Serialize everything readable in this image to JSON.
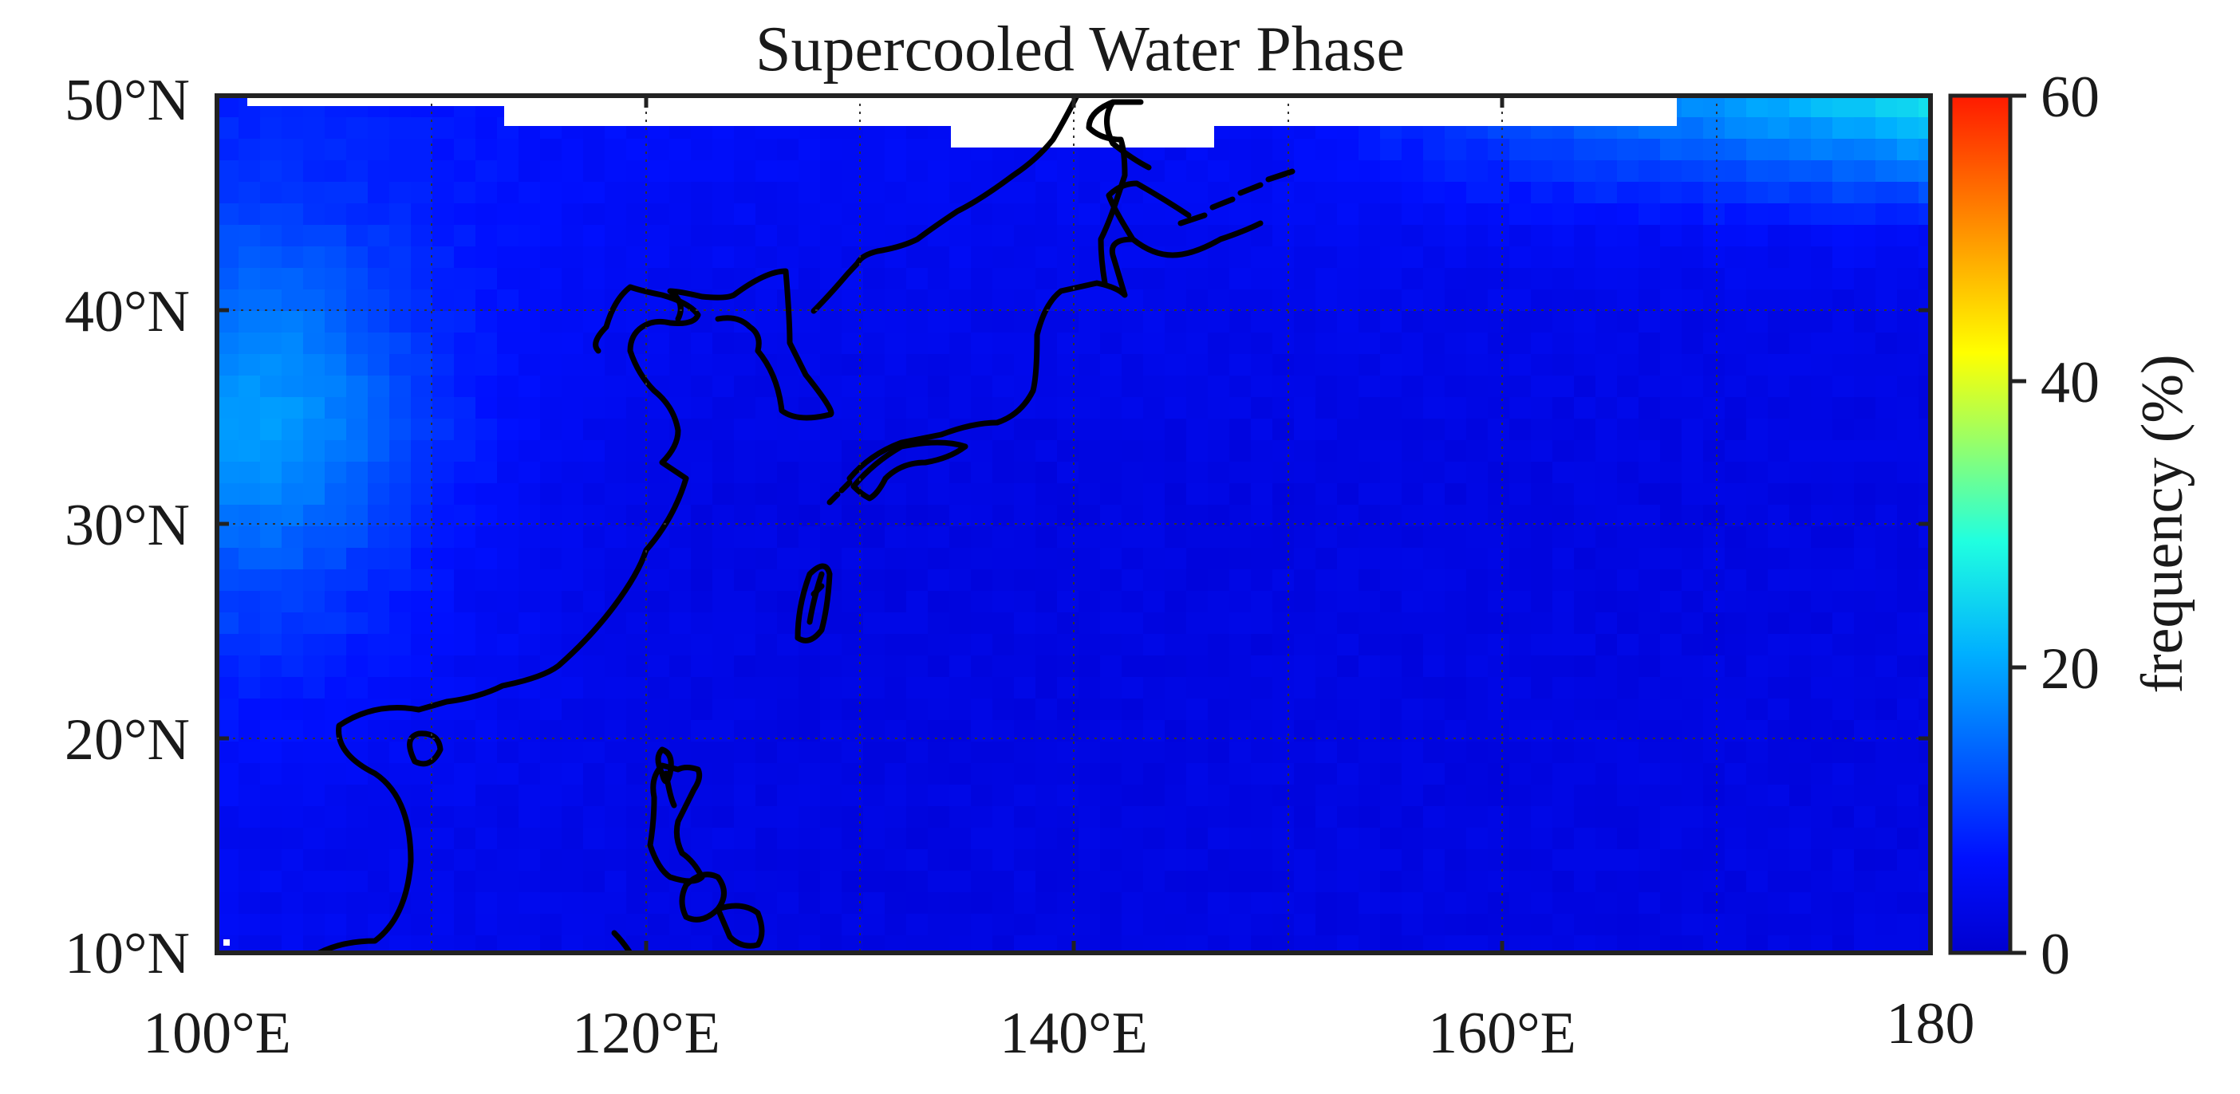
{
  "title": "Supercooled Water Phase",
  "map": {
    "x_ticks": [
      "100°E",
      "120°E",
      "140°E",
      "160°E",
      "180"
    ],
    "y_ticks": [
      "50°N",
      "40°N",
      "30°N",
      "20°N",
      "10°N"
    ],
    "lon_range": [
      100,
      180
    ],
    "lat_range": [
      10,
      50
    ],
    "grid": "dotted",
    "coastlines": "black"
  },
  "colorbar": {
    "label": "frequency (%)",
    "ticks": [
      "60",
      "40",
      "20",
      "0"
    ],
    "range": [
      0,
      60
    ],
    "colormap": "jet",
    "placement": "right"
  },
  "colors": {
    "ocean_base": "#0a1ef0",
    "land_high": "#28c8f0",
    "north_high": "#3ff0c0",
    "coast": "#000000",
    "frame": "#222222"
  }
}
